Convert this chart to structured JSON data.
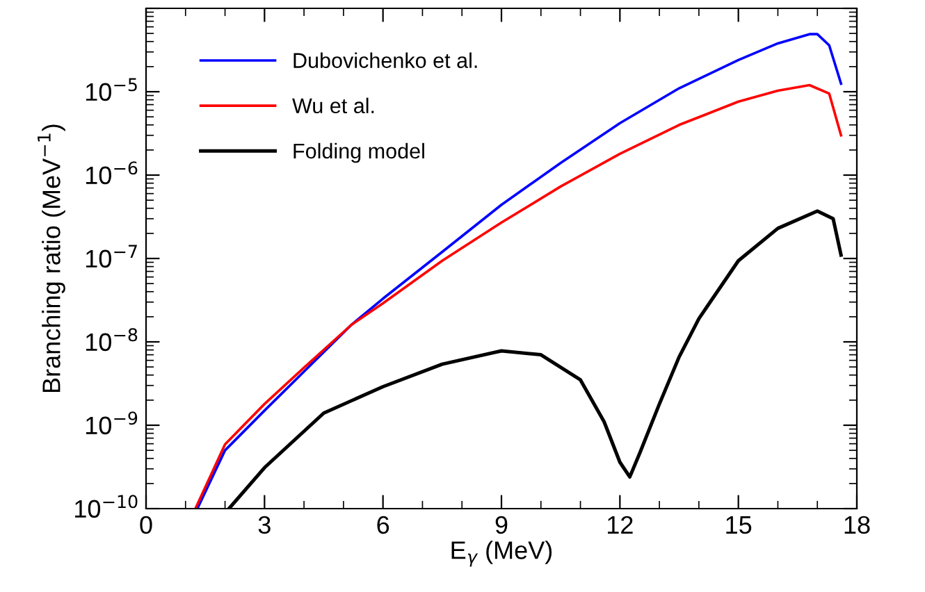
{
  "chart_data": {
    "type": "line",
    "xlabel": "E$_{γ}$ (MeV)",
    "ylabel": "Branching ratio (MeV$^{−1}$)",
    "xlim": [
      0,
      18
    ],
    "xticks": [
      0,
      3,
      6,
      9,
      12,
      15,
      18
    ],
    "ylim": [
      1e-10,
      0.0001
    ],
    "yticks": [
      {
        "value": 1e-10,
        "label": "10$^{−10}$"
      },
      {
        "value": 1e-09,
        "label": "10$^{−9}$"
      },
      {
        "value": 1e-08,
        "label": "10$^{−8}$"
      },
      {
        "value": 1e-07,
        "label": "10$^{−7}$"
      },
      {
        "value": 1e-06,
        "label": "10$^{−6}$"
      },
      {
        "value": 1e-05,
        "label": "10$^{−5}$"
      },
      {
        "value": 0.0001,
        "label": null
      }
    ],
    "log": "y",
    "grid": false,
    "legend": "top left",
    "marker": "none",
    "line_style": "solid",
    "series": [
      {
        "name": "Dubovichenko et al.",
        "color": "#0000ff",
        "x": [
          1.3,
          2,
          3,
          4,
          5.2,
          6,
          7.5,
          9,
          10.5,
          12,
          13.5,
          15,
          16,
          16.8,
          17,
          17.3,
          17.6
        ],
        "values": [
          1e-10,
          5e-10,
          1.5e-09,
          4.4e-09,
          1.6e-08,
          3.3e-08,
          1.2e-07,
          4.4e-07,
          1.4e-06,
          4.2e-06,
          1.1e-05,
          2.4e-05,
          3.8e-05,
          4.9e-05,
          4.9e-05,
          3.6e-05,
          1.25e-05
        ]
      },
      {
        "name": "Wu et al.",
        "color": "#ff0000",
        "x": [
          1.25,
          2,
          3,
          4,
          5.2,
          6,
          7.5,
          9,
          10.5,
          12,
          13.5,
          15,
          16,
          16.8,
          17.3,
          17.6
        ],
        "values": [
          1e-10,
          5.9e-10,
          1.8e-09,
          4.9e-09,
          1.6e-08,
          2.9e-08,
          9.4e-08,
          2.7e-07,
          7.3e-07,
          1.8e-06,
          4e-06,
          7.6e-06,
          1.03e-05,
          1.2e-05,
          9.5e-06,
          3e-06
        ]
      },
      {
        "name": "Folding model",
        "color": "#000000",
        "x": [
          2.1,
          3,
          4.5,
          6,
          7.5,
          9,
          10,
          11,
          11.6,
          12,
          12.25,
          12.5,
          13,
          13.5,
          14,
          15,
          16,
          17,
          17.4,
          17.6
        ],
        "values": [
          1e-10,
          3.1e-10,
          1.4e-09,
          2.9e-09,
          5.4e-09,
          7.8e-09,
          7e-09,
          3.5e-09,
          1.1e-09,
          3.6e-10,
          2.4e-10,
          4.6e-10,
          1.8e-09,
          6.6e-09,
          1.9e-08,
          9.4e-08,
          2.3e-07,
          3.7e-07,
          3e-07,
          1.1e-07
        ]
      }
    ]
  }
}
